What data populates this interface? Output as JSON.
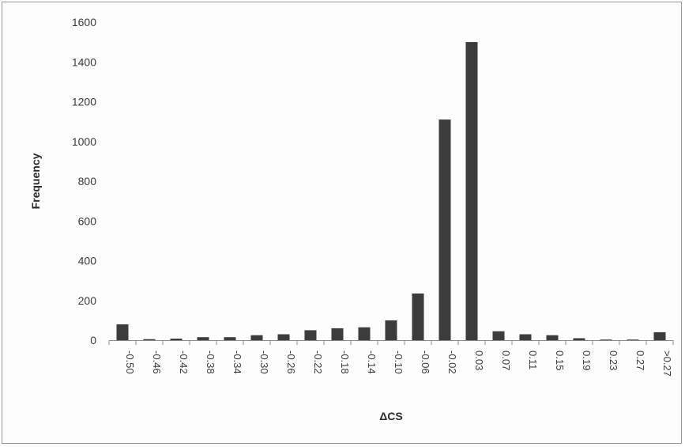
{
  "chart_data": {
    "type": "bar",
    "title": "",
    "xlabel": "ΔCS",
    "ylabel": "Frequency",
    "ylim": [
      0,
      1600
    ],
    "yticks": [
      0,
      200,
      400,
      600,
      800,
      1000,
      1200,
      1400,
      1600
    ],
    "grid": false,
    "legend": "none",
    "bar_color": "#3c3c3c",
    "categories": [
      "-0.50",
      "-0.46",
      "-0.42",
      "-0.38",
      "-0.34",
      "-0.30",
      "-0.26",
      "-0.22",
      "-0.18",
      "-0.14",
      "-0.10",
      "-0.06",
      "-0.02",
      "0.03",
      "0.07",
      "0.11",
      "0.15",
      "0.19",
      "0.23",
      "0.27",
      ">0.27"
    ],
    "values": [
      80,
      5,
      8,
      15,
      15,
      25,
      30,
      50,
      60,
      65,
      100,
      235,
      1110,
      1500,
      45,
      30,
      25,
      10,
      3,
      3,
      40
    ]
  }
}
